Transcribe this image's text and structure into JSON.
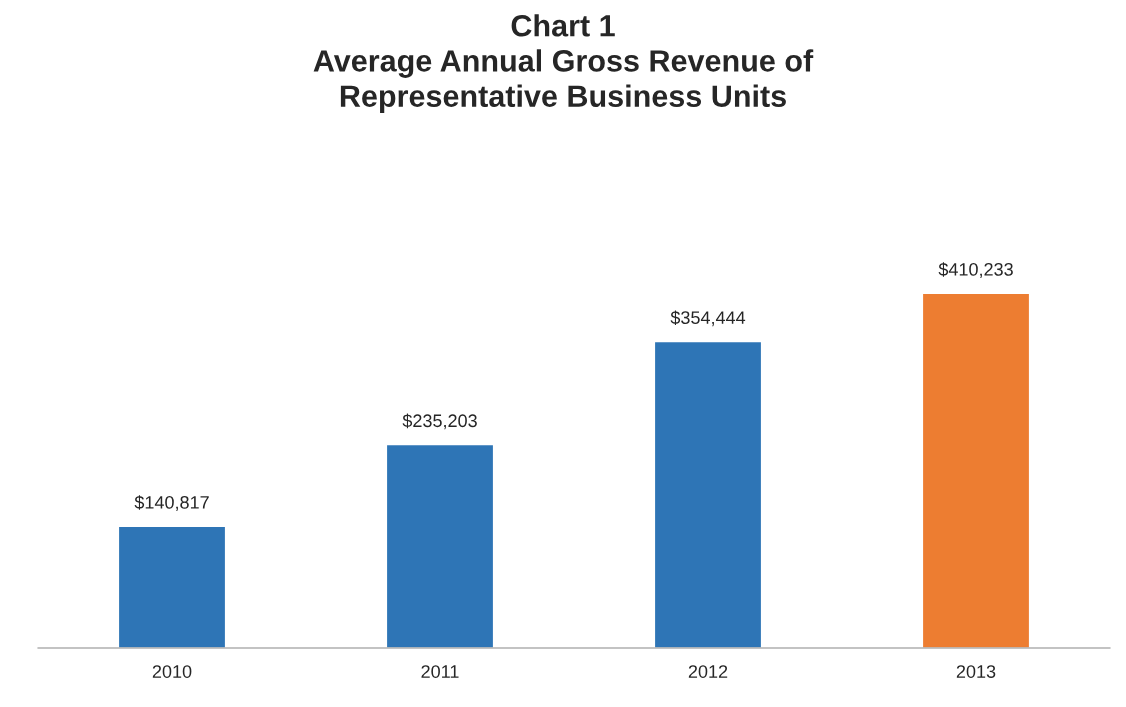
{
  "chart_data": {
    "type": "bar",
    "title": "Chart 1\nAverage Annual Gross Revenue of\nRepresentative Business Units",
    "categories": [
      "2010",
      "2011",
      "2012",
      "2013"
    ],
    "values": [
      140817,
      235203,
      354444,
      410233
    ],
    "colors": [
      "#2e75b6",
      "#2e75b6",
      "#2e75b6",
      "#ed7d31"
    ],
    "value_labels": [
      "$140,817",
      "$235,203",
      "$354,444",
      "$410,233"
    ],
    "grid": false,
    "legend": false
  }
}
